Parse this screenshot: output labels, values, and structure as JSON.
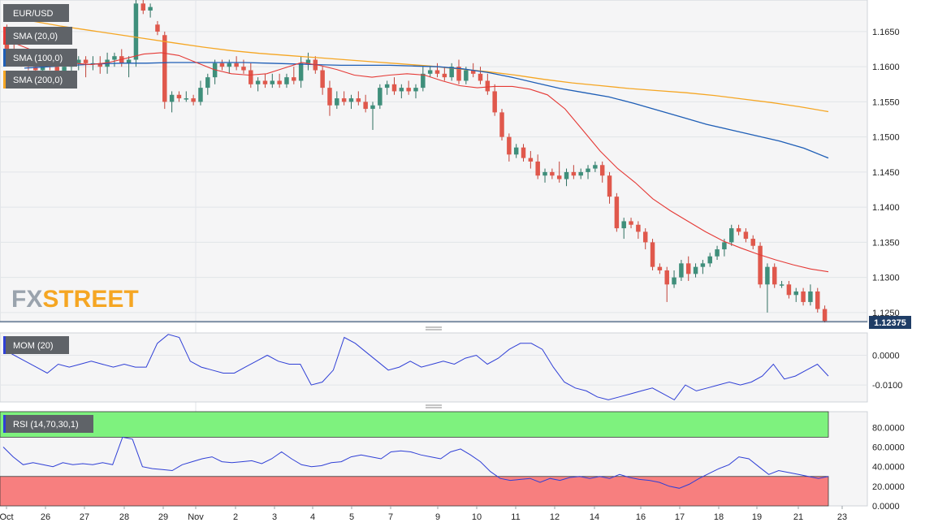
{
  "chart_data": {
    "type": "candlestick",
    "symbol": "EUR/USD",
    "logo": "FXSTREET",
    "last_price_label": "1.12375",
    "indicators": {
      "sma20": {
        "label": "SMA (20,0)",
        "color": "#e53935"
      },
      "sma100": {
        "label": "SMA (100,0)",
        "color": "#1e5eb6"
      },
      "sma200": {
        "label": "SMA (200,0)",
        "color": "#f5a623"
      }
    },
    "price_axis": {
      "ylim": [
        1.1236,
        1.1695
      ],
      "ticks": [
        "1.1250",
        "1.1300",
        "1.1350",
        "1.1400",
        "1.1450",
        "1.1500",
        "1.1550",
        "1.1600",
        "1.1650"
      ]
    },
    "x_labels": [
      "Oct",
      "26",
      "27",
      "28",
      "29",
      "Nov",
      "2",
      "3",
      "4",
      "5",
      "7",
      "9",
      "10",
      "11",
      "12",
      "14",
      "16",
      "17",
      "18",
      "19",
      "21",
      "23"
    ],
    "candles": [
      [
        1.1655,
        1.166,
        1.162,
        1.1625
      ],
      [
        1.1625,
        1.164,
        1.161,
        1.1615
      ],
      [
        1.1615,
        1.1625,
        1.16,
        1.1605
      ],
      [
        1.1605,
        1.1615,
        1.1595,
        1.16
      ],
      [
        1.16,
        1.161,
        1.159,
        1.1595
      ],
      [
        1.1595,
        1.1625,
        1.1585,
        1.162
      ],
      [
        1.162,
        1.1625,
        1.1595,
        1.16
      ],
      [
        1.16,
        1.161,
        1.1585,
        1.159
      ],
      [
        1.159,
        1.1605,
        1.1585,
        1.16
      ],
      [
        1.16,
        1.1615,
        1.159,
        1.1605
      ],
      [
        1.1605,
        1.1615,
        1.1595,
        1.161
      ],
      [
        1.161,
        1.1615,
        1.1585,
        1.1605
      ],
      [
        1.1605,
        1.1615,
        1.1595,
        1.1605
      ],
      [
        1.1605,
        1.1615,
        1.159,
        1.16
      ],
      [
        1.16,
        1.162,
        1.159,
        1.161
      ],
      [
        1.161,
        1.162,
        1.16,
        1.1615
      ],
      [
        1.1615,
        1.1625,
        1.16,
        1.1605
      ],
      [
        1.1605,
        1.1615,
        1.1585,
        1.161
      ],
      [
        1.161,
        1.1695,
        1.16,
        1.169
      ],
      [
        1.169,
        1.1695,
        1.1675,
        1.168
      ],
      [
        1.168,
        1.169,
        1.167,
        1.1685
      ],
      [
        1.166,
        1.1665,
        1.1645,
        1.165
      ],
      [
        1.1645,
        1.165,
        1.154,
        1.155
      ],
      [
        1.155,
        1.1565,
        1.1535,
        1.156
      ],
      [
        1.156,
        1.1565,
        1.155,
        1.1555
      ],
      [
        1.1555,
        1.1565,
        1.155,
        1.1555
      ],
      [
        1.1555,
        1.156,
        1.1545,
        1.155
      ],
      [
        1.155,
        1.158,
        1.1545,
        1.157
      ],
      [
        1.157,
        1.159,
        1.156,
        1.1585
      ],
      [
        1.1585,
        1.161,
        1.1575,
        1.1605
      ],
      [
        1.1605,
        1.161,
        1.1595,
        1.16
      ],
      [
        1.16,
        1.161,
        1.159,
        1.1605
      ],
      [
        1.1605,
        1.1615,
        1.1595,
        1.16
      ],
      [
        1.16,
        1.161,
        1.159,
        1.1595
      ],
      [
        1.1595,
        1.1605,
        1.157,
        1.1575
      ],
      [
        1.1575,
        1.1585,
        1.1565,
        1.158
      ],
      [
        1.158,
        1.159,
        1.157,
        1.1575
      ],
      [
        1.1575,
        1.159,
        1.157,
        1.158
      ],
      [
        1.158,
        1.159,
        1.157,
        1.1575
      ],
      [
        1.1575,
        1.159,
        1.157,
        1.1585
      ],
      [
        1.1585,
        1.16,
        1.1575,
        1.158
      ],
      [
        1.158,
        1.1615,
        1.157,
        1.1605
      ],
      [
        1.1605,
        1.162,
        1.1595,
        1.161
      ],
      [
        1.161,
        1.1615,
        1.159,
        1.1595
      ],
      [
        1.1595,
        1.16,
        1.156,
        1.157
      ],
      [
        1.157,
        1.158,
        1.153,
        1.1545
      ],
      [
        1.1545,
        1.1565,
        1.154,
        1.1555
      ],
      [
        1.1555,
        1.1565,
        1.1545,
        1.155
      ],
      [
        1.155,
        1.156,
        1.154,
        1.1555
      ],
      [
        1.1555,
        1.1565,
        1.1545,
        1.155
      ],
      [
        1.155,
        1.156,
        1.1535,
        1.154
      ],
      [
        1.154,
        1.155,
        1.151,
        1.1545
      ],
      [
        1.1545,
        1.1575,
        1.154,
        1.157
      ],
      [
        1.157,
        1.158,
        1.156,
        1.1575
      ],
      [
        1.1575,
        1.1585,
        1.156,
        1.1565
      ],
      [
        1.1565,
        1.1575,
        1.1555,
        1.157
      ],
      [
        1.157,
        1.158,
        1.156,
        1.1565
      ],
      [
        1.1565,
        1.1575,
        1.1555,
        1.157
      ],
      [
        1.157,
        1.16,
        1.1565,
        1.159
      ],
      [
        1.159,
        1.16,
        1.1585,
        1.1595
      ],
      [
        1.1595,
        1.1605,
        1.1585,
        1.159
      ],
      [
        1.159,
        1.16,
        1.158,
        1.1585
      ],
      [
        1.1585,
        1.1605,
        1.158,
        1.16
      ],
      [
        1.16,
        1.161,
        1.1575,
        1.158
      ],
      [
        1.158,
        1.16,
        1.1575,
        1.1595
      ],
      [
        1.1595,
        1.1605,
        1.1585,
        1.159
      ],
      [
        1.159,
        1.16,
        1.1575,
        1.158
      ],
      [
        1.158,
        1.159,
        1.156,
        1.1565
      ],
      [
        1.1565,
        1.1575,
        1.153,
        1.1535
      ],
      [
        1.1535,
        1.154,
        1.1495,
        1.15
      ],
      [
        1.15,
        1.1505,
        1.1465,
        1.1475
      ],
      [
        1.1475,
        1.149,
        1.147,
        1.1485
      ],
      [
        1.1485,
        1.149,
        1.1465,
        1.147
      ],
      [
        1.147,
        1.148,
        1.1455,
        1.1465
      ],
      [
        1.1465,
        1.1475,
        1.144,
        1.1445
      ],
      [
        1.1445,
        1.1455,
        1.1435,
        1.145
      ],
      [
        1.145,
        1.1455,
        1.144,
        1.1445
      ],
      [
        1.1445,
        1.1465,
        1.1435,
        1.144
      ],
      [
        1.144,
        1.1455,
        1.143,
        1.145
      ],
      [
        1.145,
        1.146,
        1.144,
        1.1445
      ],
      [
        1.1445,
        1.1455,
        1.144,
        1.145
      ],
      [
        1.145,
        1.146,
        1.144,
        1.1455
      ],
      [
        1.1455,
        1.1465,
        1.145,
        1.146
      ],
      [
        1.146,
        1.1465,
        1.1435,
        1.1445
      ],
      [
        1.1445,
        1.145,
        1.1405,
        1.1415
      ],
      [
        1.1415,
        1.142,
        1.1365,
        1.137
      ],
      [
        1.137,
        1.1385,
        1.1355,
        1.138
      ],
      [
        1.138,
        1.1385,
        1.137,
        1.1375
      ],
      [
        1.1375,
        1.138,
        1.1355,
        1.1365
      ],
      [
        1.1365,
        1.137,
        1.134,
        1.135
      ],
      [
        1.135,
        1.1355,
        1.131,
        1.1315
      ],
      [
        1.1315,
        1.132,
        1.1305,
        1.131
      ],
      [
        1.131,
        1.1315,
        1.1265,
        1.129
      ],
      [
        1.129,
        1.131,
        1.1285,
        1.13
      ],
      [
        1.13,
        1.1325,
        1.1295,
        1.132
      ],
      [
        1.132,
        1.133,
        1.1295,
        1.1305
      ],
      [
        1.1305,
        1.132,
        1.13,
        1.1315
      ],
      [
        1.1315,
        1.1325,
        1.1305,
        1.132
      ],
      [
        1.132,
        1.1335,
        1.1315,
        1.133
      ],
      [
        1.133,
        1.1345,
        1.1325,
        1.134
      ],
      [
        1.134,
        1.1355,
        1.133,
        1.135
      ],
      [
        1.135,
        1.1375,
        1.1345,
        1.137
      ],
      [
        1.137,
        1.1375,
        1.136,
        1.1365
      ],
      [
        1.1365,
        1.137,
        1.135,
        1.1355
      ],
      [
        1.1355,
        1.136,
        1.134,
        1.1345
      ],
      [
        1.1345,
        1.135,
        1.1285,
        1.129
      ],
      [
        1.129,
        1.132,
        1.125,
        1.1315
      ],
      [
        1.1315,
        1.132,
        1.1285,
        1.129
      ],
      [
        1.129,
        1.1295,
        1.1285,
        1.129
      ],
      [
        1.129,
        1.1295,
        1.127,
        1.1275
      ],
      [
        1.1275,
        1.1285,
        1.1265,
        1.128
      ],
      [
        1.128,
        1.1285,
        1.126,
        1.1265
      ],
      [
        1.1265,
        1.129,
        1.126,
        1.128
      ],
      [
        1.128,
        1.1285,
        1.125,
        1.1255
      ],
      [
        1.1255,
        1.126,
        1.1236,
        1.1238
      ]
    ],
    "sma20": [
      1.164,
      1.163,
      1.162,
      1.1612,
      1.1605,
      1.1603,
      1.1606,
      1.1612,
      1.1618,
      1.162,
      1.1616,
      1.1606,
      1.1596,
      1.159,
      1.1588,
      1.159,
      1.1598,
      1.1606,
      1.1602,
      1.1596,
      1.1588,
      1.1585,
      1.1588,
      1.159,
      1.1588,
      1.158,
      1.1573,
      1.157,
      1.1572,
      1.1572,
      1.1568,
      1.156,
      1.154,
      1.151,
      1.148,
      1.1455,
      1.1435,
      1.1412,
      1.1395,
      1.138,
      1.1365,
      1.1352,
      1.1342,
      1.1333,
      1.1325,
      1.1318,
      1.1312,
      1.1308
    ],
    "sma100": [
      1.1598,
      1.16,
      1.1602,
      1.1604,
      1.1605,
      1.1605,
      1.1606,
      1.1606,
      1.1606,
      1.1606,
      1.1605,
      1.1604,
      1.1603,
      1.1602,
      1.1602,
      1.1602,
      1.1601,
      1.16,
      1.1597,
      1.1592,
      1.1585,
      1.1577,
      1.1569,
      1.1563,
      1.1557,
      1.1548,
      1.1538,
      1.1528,
      1.1518,
      1.151,
      1.1502,
      1.1494,
      1.1484,
      1.147
    ],
    "sma200": [
      1.1672,
      1.1665,
      1.1658,
      1.1652,
      1.1646,
      1.164,
      1.1634,
      1.1628,
      1.1623,
      1.1619,
      1.1616,
      1.1613,
      1.161,
      1.1607,
      1.1604,
      1.1601,
      1.1597,
      1.1593,
      1.1588,
      1.1582,
      1.1577,
      1.1573,
      1.1569,
      1.1566,
      1.1563,
      1.1559,
      1.1554,
      1.1549,
      1.1543,
      1.1536
    ],
    "mom": {
      "label": "MOM (20)",
      "ylim": [
        -0.0157,
        0.0075
      ],
      "ticks": [
        "0.0000",
        "-0.0100"
      ],
      "values": [
        0.002,
        0.0,
        -0.002,
        -0.004,
        -0.006,
        -0.003,
        -0.004,
        -0.003,
        -0.002,
        -0.003,
        -0.004,
        -0.003,
        -0.004,
        -0.004,
        0.004,
        0.007,
        0.006,
        -0.002,
        -0.004,
        -0.005,
        -0.006,
        -0.006,
        -0.004,
        -0.002,
        0.0,
        -0.002,
        -0.003,
        -0.003,
        -0.01,
        -0.009,
        -0.005,
        0.006,
        0.004,
        0.001,
        -0.002,
        -0.005,
        -0.004,
        -0.002,
        -0.004,
        -0.003,
        -0.002,
        -0.003,
        -0.001,
        0.0,
        -0.003,
        -0.001,
        0.002,
        0.004,
        0.004,
        0.002,
        -0.004,
        -0.009,
        -0.011,
        -0.012,
        -0.014,
        -0.015,
        -0.014,
        -0.013,
        -0.012,
        -0.011,
        -0.013,
        -0.015,
        -0.01,
        -0.012,
        -0.011,
        -0.01,
        -0.009,
        -0.01,
        -0.009,
        -0.007,
        -0.003,
        -0.008,
        -0.007,
        -0.005,
        -0.003,
        -0.007
      ]
    },
    "rsi": {
      "label": "RSI (14,70,30,1)",
      "ylim": [
        0,
        96
      ],
      "ticks": [
        "0.0000",
        "20.0000",
        "40.0000",
        "60.0000",
        "80.0000"
      ],
      "overbought": 70,
      "oversold": 30,
      "values": [
        60,
        50,
        42,
        44,
        42,
        40,
        44,
        42,
        43,
        42,
        44,
        42,
        70,
        68,
        40,
        38,
        37,
        36,
        42,
        45,
        48,
        50,
        45,
        44,
        45,
        46,
        43,
        48,
        55,
        48,
        42,
        40,
        41,
        44,
        45,
        50,
        52,
        50,
        48,
        55,
        56,
        55,
        52,
        50,
        48,
        55,
        58,
        52,
        45,
        35,
        28,
        26,
        27,
        28,
        24,
        28,
        26,
        29,
        30,
        28,
        30,
        28,
        32,
        29,
        27,
        26,
        24,
        20,
        18,
        22,
        28,
        33,
        38,
        42,
        50,
        48,
        40,
        32,
        36,
        34,
        32,
        30,
        28,
        30
      ]
    }
  }
}
